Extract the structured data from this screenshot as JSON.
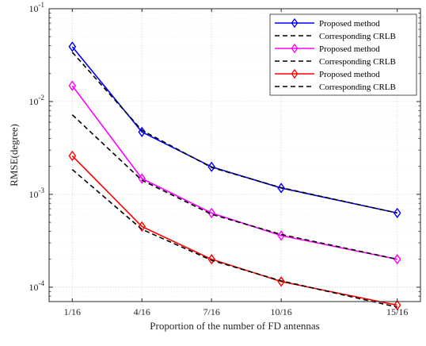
{
  "chart_data": {
    "type": "line",
    "title": "",
    "xlabel": "Proportion of the number of FD antennas",
    "ylabel": "RMSE(degree)",
    "x": [
      1,
      4,
      7,
      10,
      15
    ],
    "xticks": [
      1,
      4,
      7,
      10,
      15
    ],
    "xtick_labels": [
      "1/16",
      "4/16",
      "7/16",
      "10/16",
      "15/16"
    ],
    "xlim": [
      0,
      16
    ],
    "yscale": "log",
    "ylim": [
      7e-05,
      0.1
    ],
    "yticks": [
      0.0001,
      0.001,
      0.01,
      0.1
    ],
    "ytick_labels": [
      {
        "base": "10",
        "exp": "-4"
      },
      {
        "base": "10",
        "exp": "-3"
      },
      {
        "base": "10",
        "exp": "-2"
      },
      {
        "base": "10",
        "exp": "-1"
      }
    ],
    "grid": true,
    "legend_position": "top-right",
    "series": [
      {
        "name": "Proposed method",
        "color": "#0000ff",
        "style": "solid",
        "marker": "diamond",
        "values": [
          0.039,
          0.0047,
          0.00198,
          0.00117,
          0.00063
        ]
      },
      {
        "name": "Corresponding CRLB",
        "color": "#000000",
        "style": "dashed",
        "marker": "none",
        "values": [
          0.034,
          0.0049,
          0.00195,
          0.00118,
          0.00063
        ]
      },
      {
        "name": "Proposed method",
        "color": "#ff00ff",
        "style": "solid",
        "marker": "diamond",
        "values": [
          0.0148,
          0.00148,
          0.00063,
          0.00036,
          0.0002
        ]
      },
      {
        "name": "Corresponding CRLB",
        "color": "#000000",
        "style": "dashed",
        "marker": "none",
        "values": [
          0.0072,
          0.00142,
          0.00061,
          0.00037,
          0.0002
        ]
      },
      {
        "name": "Proposed method",
        "color": "#ff0000",
        "style": "solid",
        "marker": "diamond",
        "values": [
          0.0026,
          0.00045,
          0.0002,
          0.000115,
          6.4e-05
        ]
      },
      {
        "name": "Corresponding CRLB",
        "color": "#000000",
        "style": "dashed",
        "marker": "none",
        "values": [
          0.00185,
          0.00042,
          0.000195,
          0.000117,
          6.1e-05
        ]
      }
    ]
  }
}
